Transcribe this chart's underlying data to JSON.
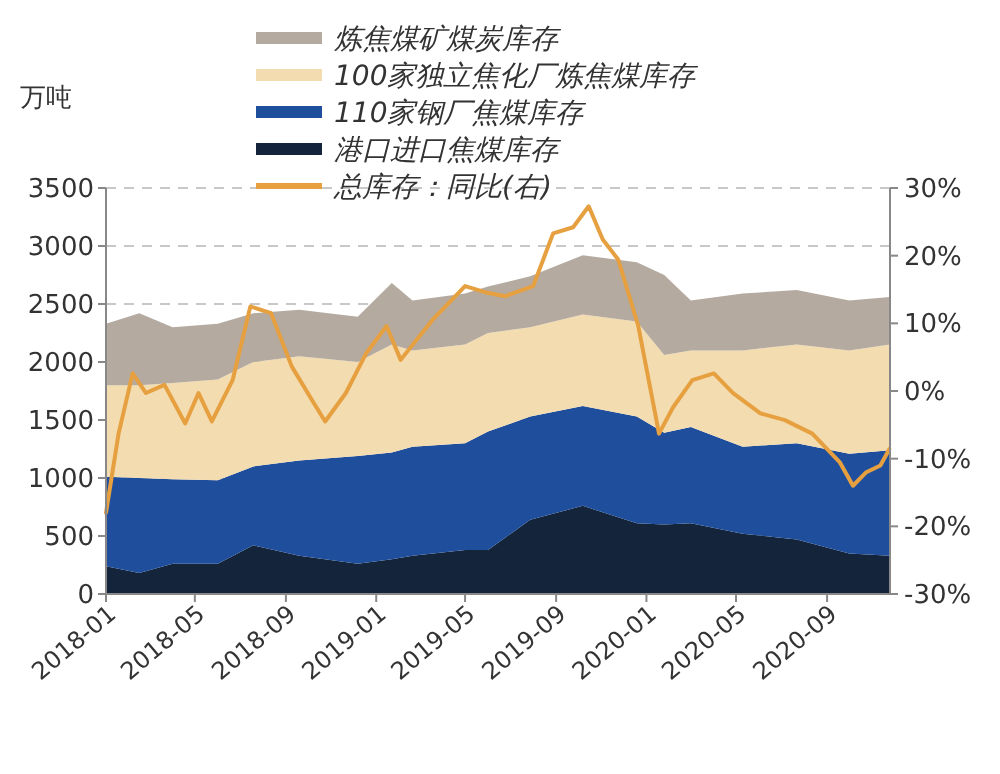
{
  "chart_data": {
    "type": "area",
    "stacked": true,
    "ylabel": "万吨",
    "legend": "top",
    "grid": "y",
    "x": [
      "2018-01-01",
      "2018-02-15",
      "2018-04-01",
      "2018-06-01",
      "2018-07-19",
      "2018-09-19",
      "2018-12-07",
      "2019-01-22",
      "2019-02-19",
      "2019-05-01",
      "2019-06-01",
      "2019-07-28",
      "2019-10-07",
      "2019-12-19",
      "2020-01-25",
      "2020-03-01",
      "2020-05-10",
      "2020-07-22",
      "2020-10-01",
      "2020-11-25"
    ],
    "xlim": [
      "2018-01-01",
      "2020-11-25"
    ],
    "xticks": [
      {
        "value": "2018-01-01",
        "label": "2018-01"
      },
      {
        "value": "2018-05-01",
        "label": "2018-05"
      },
      {
        "value": "2018-09-01",
        "label": "2018-09"
      },
      {
        "value": "2019-01-01",
        "label": "2019-01"
      },
      {
        "value": "2019-05-01",
        "label": "2019-05"
      },
      {
        "value": "2019-09-01",
        "label": "2019-09"
      },
      {
        "value": "2020-01-01",
        "label": "2020-01"
      },
      {
        "value": "2020-05-01",
        "label": "2020-05"
      },
      {
        "value": "2020-09-01",
        "label": "2020-09"
      }
    ],
    "ylim": [
      0,
      3500
    ],
    "yticks": [
      0,
      500,
      1000,
      1500,
      2000,
      2500,
      3000,
      3500
    ],
    "y2lim": [
      -30,
      30
    ],
    "y2ticks": [
      {
        "value": -30,
        "label": "-30%"
      },
      {
        "value": -20,
        "label": "-20%"
      },
      {
        "value": -10,
        "label": "-10%"
      },
      {
        "value": 0,
        "label": "0%"
      },
      {
        "value": 10,
        "label": "10%"
      },
      {
        "value": 20,
        "label": "20%"
      },
      {
        "value": 30,
        "label": "30%"
      }
    ],
    "series": [
      {
        "name": "港口进口焦煤库存",
        "color": "#14253b",
        "values": [
          240,
          180,
          260,
          260,
          420,
          330,
          260,
          300,
          330,
          380,
          380,
          640,
          760,
          610,
          600,
          610,
          520,
          470,
          350,
          330
        ]
      },
      {
        "name": "110家钢厂焦煤库存",
        "color": "#1f4e9c",
        "values": [
          770,
          820,
          730,
          720,
          680,
          820,
          930,
          920,
          940,
          920,
          1020,
          890,
          860,
          920,
          790,
          830,
          750,
          830,
          860,
          910
        ]
      },
      {
        "name": "100家独立焦化厂炼焦煤库存",
        "color": "#f3dcb0",
        "values": [
          790,
          800,
          830,
          870,
          900,
          900,
          810,
          930,
          830,
          850,
          850,
          770,
          790,
          820,
          670,
          660,
          830,
          850,
          890,
          910
        ]
      },
      {
        "name": "炼焦煤矿煤炭库存",
        "color": "#b4aaa0",
        "values": [
          530,
          620,
          480,
          480,
          420,
          400,
          390,
          530,
          430,
          440,
          400,
          440,
          510,
          510,
          690,
          430,
          490,
          470,
          430,
          410
        ]
      },
      {
        "name": "总库存：同比(右)",
        "type": "line",
        "axis": "y2",
        "color": "#e6a040",
        "x": [
          "2018-01-01",
          "2018-01-18",
          "2018-02-06",
          "2018-02-24",
          "2018-03-21",
          "2018-04-18",
          "2018-05-06",
          "2018-05-24",
          "2018-06-21",
          "2018-07-15",
          "2018-08-12",
          "2018-09-09",
          "2018-10-06",
          "2018-10-24",
          "2018-11-21",
          "2018-12-18",
          "2019-01-15",
          "2019-02-03",
          "2019-03-18",
          "2019-05-01",
          "2019-05-28",
          "2019-06-24",
          "2019-08-01",
          "2019-08-28",
          "2019-09-24",
          "2019-10-15",
          "2019-11-03",
          "2019-11-24",
          "2019-12-21",
          "2020-01-18",
          "2020-02-06",
          "2020-03-03",
          "2020-04-01",
          "2020-04-27",
          "2020-06-03",
          "2020-07-06",
          "2020-08-12",
          "2020-09-18",
          "2020-10-06",
          "2020-10-24",
          "2020-11-12",
          "2020-11-24"
        ],
        "values": [
          -18,
          -6.3,
          2.6,
          -0.3,
          0.9,
          -4.8,
          -0.3,
          -4.5,
          1.6,
          12.5,
          11.5,
          3.6,
          -1.3,
          -4.5,
          -0.3,
          5.5,
          9.6,
          4.6,
          10.5,
          15.5,
          14.6,
          14,
          15.5,
          23.3,
          24.2,
          27.3,
          22.4,
          19.4,
          9.6,
          -6.3,
          -2.4,
          1.6,
          2.6,
          -0.3,
          -3.3,
          -4.3,
          -6.3,
          -10.5,
          -14,
          -12,
          -11,
          -8.6
        ]
      }
    ]
  }
}
